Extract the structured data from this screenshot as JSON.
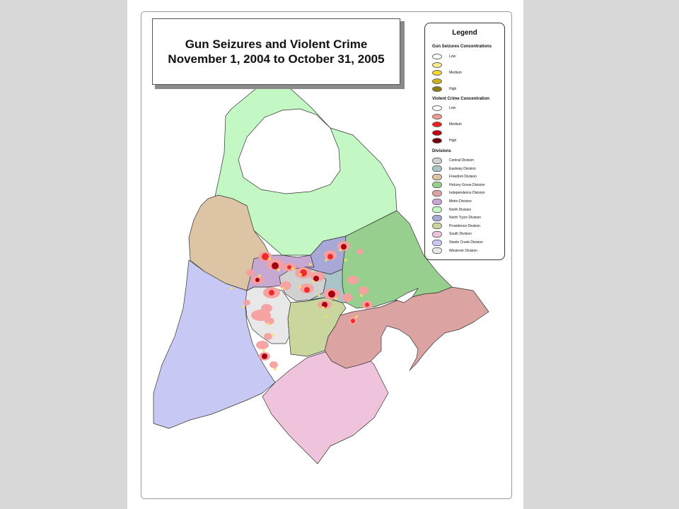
{
  "title": {
    "line1": "Gun Seizures and Violent Crime",
    "line2": "November 1, 2004 to October 31, 2005"
  },
  "legend": {
    "heading": "Legend",
    "gun_section": "Gun Seizures Concentrations",
    "gun_levels": [
      {
        "label": "Low",
        "color": "#ffffff"
      },
      {
        "label": "",
        "color": "#fbea8f"
      },
      {
        "label": "Medium",
        "color": "#f5d33a"
      },
      {
        "label": "",
        "color": "#d0b21f"
      },
      {
        "label": "High",
        "color": "#8f7a12"
      }
    ],
    "crime_section": "Violent Crime Concentration",
    "crime_levels": [
      {
        "label": "Low",
        "color": "#ffffff"
      },
      {
        "label": "",
        "color": "#f59a93"
      },
      {
        "label": "Medium",
        "color": "#f02020"
      },
      {
        "label": "",
        "color": "#c00010"
      },
      {
        "label": "High",
        "color": "#6e0008"
      }
    ],
    "divisions_section": "Divisions",
    "divisions": [
      {
        "label": "Central Division",
        "color": "#d1d1d1"
      },
      {
        "label": "Eastway Division",
        "color": "#a9c5c8"
      },
      {
        "label": "Freedom Division",
        "color": "#ddc4a4"
      },
      {
        "label": "Hickory Grove Division",
        "color": "#97cf8f"
      },
      {
        "label": "Independence Division",
        "color": "#dca3a3"
      },
      {
        "label": "Metro Division",
        "color": "#c7a8d2"
      },
      {
        "label": "North Division",
        "color": "#c3f7c3"
      },
      {
        "label": "North Tryon Division",
        "color": "#a8a8d6"
      },
      {
        "label": "Providence Division",
        "color": "#c9d69e"
      },
      {
        "label": "South Division",
        "color": "#f0c3dc"
      },
      {
        "label": "Steele Creek Division",
        "color": "#c8c8f5"
      },
      {
        "label": "Westover Division",
        "color": "#e8e8e8"
      }
    ]
  },
  "colors": {
    "crime_halo": "#f7a0a0",
    "crime_medium": "#ee2b2b",
    "crime_high": "#a8000c",
    "gun_seizure": "#f8e25a",
    "boundary": "#333333",
    "water": "#ffffff"
  }
}
